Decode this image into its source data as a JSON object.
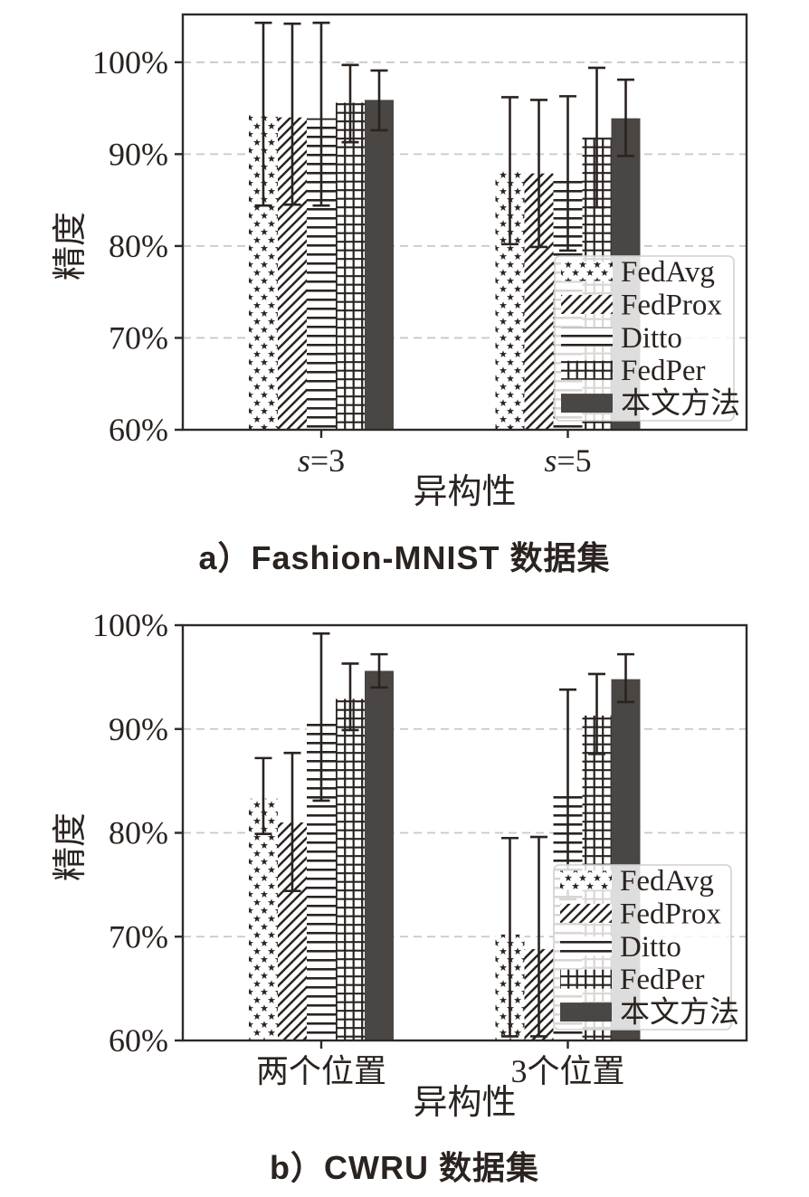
{
  "page": {
    "background": "#ffffff"
  },
  "colors": {
    "ink": "#2a2320",
    "bar_solid": "#4a4644",
    "axis": "#2e2926",
    "gridline": "#c8c8c8",
    "legend_border": "#d2d0cf",
    "legend_background": "rgba(255,255,255,0.82)"
  },
  "chart_data": [
    {
      "type": "bar",
      "title": "a）Fashion-MNIST 数据集",
      "xlabel": "异构性",
      "ylabel": "精度",
      "categories": [
        "s=3",
        "s=5"
      ],
      "categories_italic": true,
      "yticks": [
        60,
        70,
        80,
        90,
        100
      ],
      "ytick_suffix": "%",
      "ylim": [
        60,
        105.2
      ],
      "grid": "dashed-horizontal",
      "legend_position": "lower-right-inside",
      "series": [
        {
          "name": "FedAvg",
          "hatch": "star",
          "values": [
            94.3,
            88.2
          ],
          "err_low": [
            84.4,
            80.2
          ],
          "err_high": [
            104.3,
            96.2
          ]
        },
        {
          "name": "FedProx",
          "hatch": "diagonal",
          "values": [
            94.0,
            87.9
          ],
          "err_low": [
            84.5,
            79.9
          ],
          "err_high": [
            104.2,
            95.9
          ]
        },
        {
          "name": "Ditto",
          "hatch": "horizontal",
          "values": [
            93.9,
            87.7
          ],
          "err_low": [
            84.4,
            79.5
          ],
          "err_high": [
            104.3,
            96.3
          ]
        },
        {
          "name": "FedPer",
          "hatch": "grid",
          "values": [
            95.6,
            91.8
          ],
          "err_low": [
            91.3,
            84.2
          ],
          "err_high": [
            99.7,
            99.4
          ]
        },
        {
          "name": "本文方法",
          "hatch": "solid",
          "values": [
            95.9,
            93.9
          ],
          "err_low": [
            92.6,
            89.8
          ],
          "err_high": [
            99.1,
            98.1
          ]
        }
      ]
    },
    {
      "type": "bar",
      "title": "b）CWRU 数据集",
      "xlabel": "异构性",
      "ylabel": "精度",
      "categories": [
        "两个位置",
        "3个位置"
      ],
      "categories_italic": false,
      "yticks": [
        60,
        70,
        80,
        90,
        100
      ],
      "ytick_suffix": "%",
      "ylim": [
        60,
        100
      ],
      "grid": "dashed-horizontal",
      "legend_position": "lower-right-inside",
      "series": [
        {
          "name": "FedAvg",
          "hatch": "star",
          "values": [
            83.3,
            70.2
          ],
          "err_low": [
            79.9,
            60.4
          ],
          "err_high": [
            87.2,
            79.5
          ]
        },
        {
          "name": "FedProx",
          "hatch": "diagonal",
          "values": [
            81.0,
            68.8
          ],
          "err_low": [
            74.4,
            60.4
          ],
          "err_high": [
            87.7,
            79.6
          ]
        },
        {
          "name": "Ditto",
          "hatch": "horizontal",
          "values": [
            91.1,
            83.7
          ],
          "err_low": [
            83.1,
            73.6
          ],
          "err_high": [
            99.2,
            93.8
          ]
        },
        {
          "name": "FedPer",
          "hatch": "grid",
          "values": [
            92.9,
            91.3
          ],
          "err_low": [
            89.9,
            87.6
          ],
          "err_high": [
            96.3,
            95.3
          ]
        },
        {
          "name": "本文方法",
          "hatch": "solid",
          "values": [
            95.6,
            94.8
          ],
          "err_low": [
            94.0,
            92.6
          ],
          "err_high": [
            97.2,
            97.2
          ]
        }
      ]
    }
  ]
}
